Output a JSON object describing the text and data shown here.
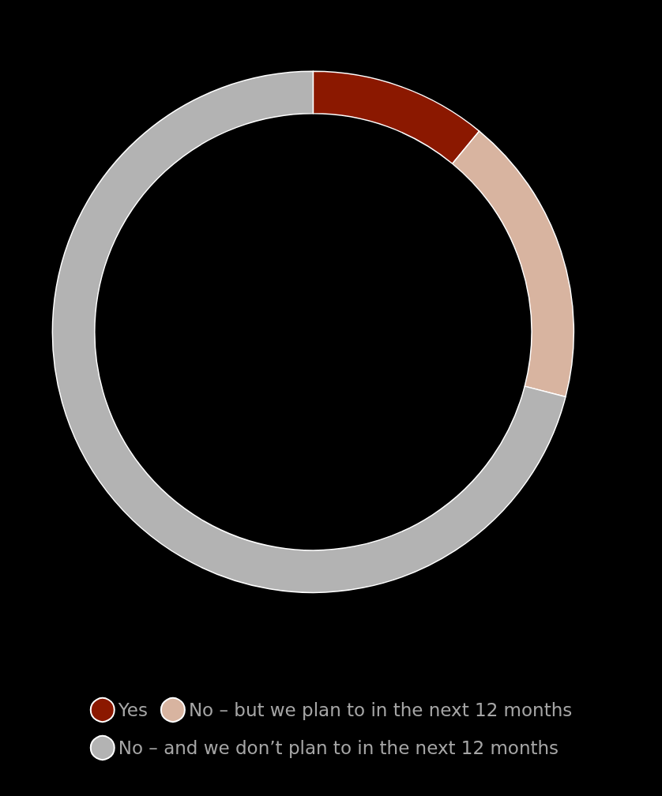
{
  "chart_data": {
    "type": "donut",
    "categories": [
      "Yes",
      "No – but we plan to in the next 12 months",
      "No – and we don’t plan to in the next 12 months"
    ],
    "values": [
      11,
      18,
      71
    ],
    "colors": [
      "#8b1800",
      "#d8b4a0",
      "#b3b3b3"
    ],
    "legend": "bottom"
  }
}
